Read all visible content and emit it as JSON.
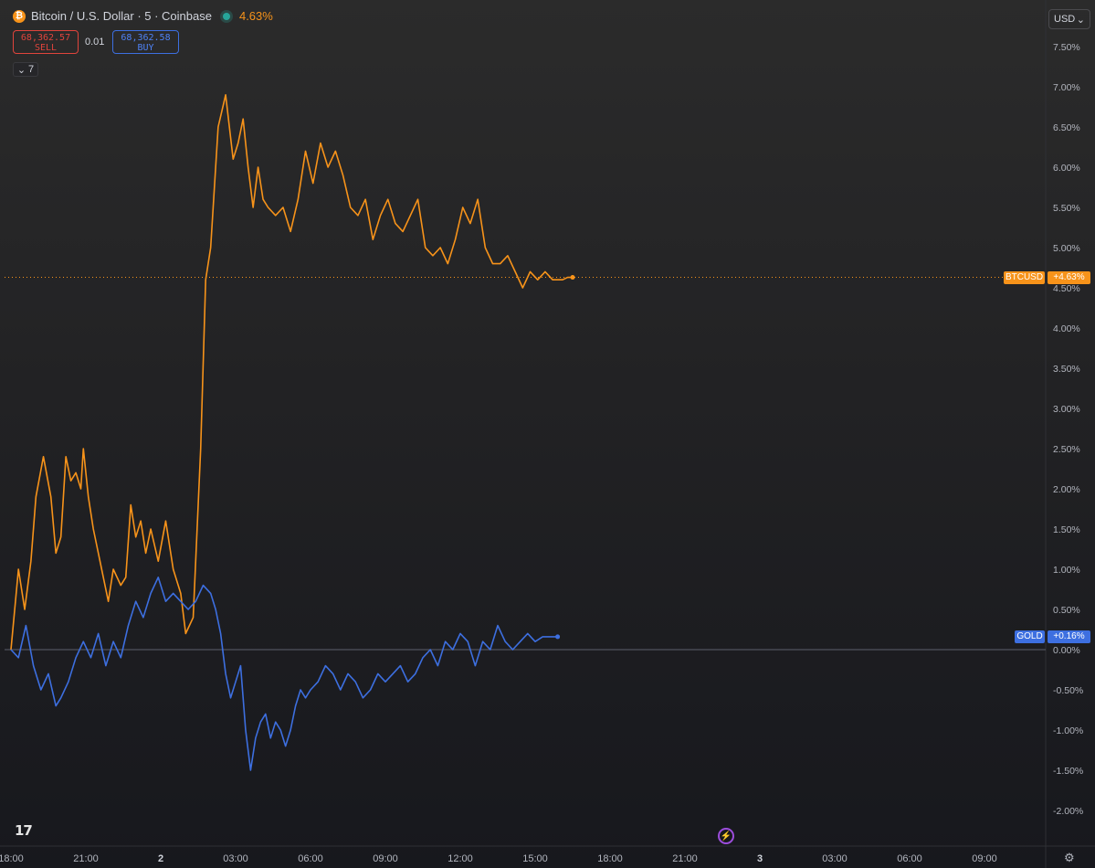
{
  "header": {
    "title": "Bitcoin / U.S. Dollar · 5 · Coinbase",
    "change_pct": "4.63%",
    "sell_price": "68,362.57",
    "sell_label": "SELL",
    "spread": "0.01",
    "buy_price": "68,362.58",
    "buy_label": "BUY",
    "indicators_count": "7",
    "currency": "USD"
  },
  "icons": [
    "bitcoin-icon",
    "live-status-icon",
    "chevron-down-icon",
    "tradingview-logo",
    "replay-icon",
    "gear-icon"
  ],
  "colors": {
    "btc": "#f7931a",
    "gold": "#3d6fe0",
    "sell": "#e0443c",
    "buy": "#4e82f5"
  },
  "chart_data": {
    "type": "line",
    "title": "Bitcoin / U.S. Dollar · 5 · Coinbase",
    "xlabel": "",
    "ylabel": "",
    "x_ticks": [
      "18:00",
      "21:00",
      "2",
      "03:00",
      "06:00",
      "09:00",
      "12:00",
      "15:00",
      "18:00",
      "21:00",
      "3",
      "03:00",
      "06:00",
      "09:00"
    ],
    "y_ticks": [
      "7.50%",
      "7.00%",
      "6.50%",
      "6.00%",
      "5.50%",
      "5.00%",
      "4.50%",
      "4.00%",
      "3.50%",
      "3.00%",
      "2.50%",
      "2.00%",
      "1.50%",
      "1.00%",
      "0.50%",
      "0.00%",
      "-0.50%",
      "-1.00%",
      "-1.50%",
      "-2.00%"
    ],
    "ylim": [
      -2.2,
      7.9
    ],
    "xlim": [
      "18:00",
      "11:00 (day 3)"
    ],
    "grid": false,
    "series": [
      {
        "name": "BTCUSD",
        "label": "+4.63%",
        "color": "#f7931a",
        "x": [
          0,
          0.3,
          0.55,
          0.8,
          1.0,
          1.3,
          1.6,
          1.8,
          2.0,
          2.2,
          2.4,
          2.6,
          2.8,
          2.9,
          3.1,
          3.3,
          3.5,
          3.7,
          3.9,
          4.1,
          4.4,
          4.6,
          4.8,
          5.0,
          5.2,
          5.4,
          5.6,
          5.9,
          6.2,
          6.5,
          6.8,
          7.0,
          7.3,
          7.6,
          7.8,
          8.0,
          8.3,
          8.6,
          8.9,
          9.1,
          9.3,
          9.5,
          9.7,
          9.9,
          10.1,
          10.3,
          10.6,
          10.9,
          11.2,
          11.5,
          11.8,
          12.1,
          12.4,
          12.7,
          13.0,
          13.3,
          13.6,
          13.9,
          14.2,
          14.5,
          14.8,
          15.1,
          15.4,
          15.7,
          16.0,
          16.3,
          16.6,
          16.9,
          17.2,
          17.5,
          17.8,
          18.1,
          18.4,
          18.7,
          19.0,
          19.3,
          19.6,
          19.9,
          20.2,
          20.5,
          20.8,
          21.1,
          21.4,
          21.7,
          21.9,
          22.1,
          22.3,
          22.5
        ],
        "y": [
          0.0,
          1.0,
          0.5,
          1.1,
          1.9,
          2.4,
          1.9,
          1.2,
          1.4,
          2.4,
          2.1,
          2.2,
          2.0,
          2.5,
          1.9,
          1.5,
          1.2,
          0.9,
          0.6,
          1.0,
          0.8,
          0.9,
          1.8,
          1.4,
          1.6,
          1.2,
          1.5,
          1.1,
          1.6,
          1.0,
          0.7,
          0.2,
          0.4,
          2.5,
          4.6,
          5.0,
          6.5,
          6.9,
          6.1,
          6.3,
          6.6,
          6.0,
          5.5,
          6.0,
          5.6,
          5.5,
          5.4,
          5.5,
          5.2,
          5.6,
          6.2,
          5.8,
          6.3,
          6.0,
          6.2,
          5.9,
          5.5,
          5.4,
          5.6,
          5.1,
          5.4,
          5.6,
          5.3,
          5.2,
          5.4,
          5.6,
          5.0,
          4.9,
          5.0,
          4.8,
          5.1,
          5.5,
          5.3,
          5.6,
          5.0,
          4.8,
          4.8,
          4.9,
          4.7,
          4.5,
          4.7,
          4.6,
          4.7,
          4.6,
          4.6,
          4.6,
          4.63,
          4.63
        ],
        "last_value": 4.63
      },
      {
        "name": "GOLD",
        "label": "+0.16%",
        "color": "#3d6fe0",
        "x": [
          0,
          0.3,
          0.6,
          0.9,
          1.2,
          1.5,
          1.8,
          2.0,
          2.3,
          2.6,
          2.9,
          3.2,
          3.5,
          3.8,
          4.1,
          4.4,
          4.7,
          5.0,
          5.3,
          5.6,
          5.9,
          6.2,
          6.5,
          6.8,
          7.1,
          7.4,
          7.7,
          8.0,
          8.2,
          8.4,
          8.6,
          8.8,
          9.0,
          9.2,
          9.4,
          9.6,
          9.8,
          10.0,
          10.2,
          10.4,
          10.6,
          10.8,
          11.0,
          11.2,
          11.4,
          11.6,
          11.8,
          12.0,
          12.3,
          12.6,
          12.9,
          13.2,
          13.5,
          13.8,
          14.1,
          14.4,
          14.7,
          15.0,
          15.3,
          15.6,
          15.9,
          16.2,
          16.5,
          16.8,
          17.1,
          17.4,
          17.7,
          18.0,
          18.3,
          18.6,
          18.9,
          19.2,
          19.5,
          19.8,
          20.1,
          20.4,
          20.7,
          21.0,
          21.3,
          21.6,
          21.9
        ],
        "y": [
          0.0,
          -0.1,
          0.3,
          -0.2,
          -0.5,
          -0.3,
          -0.7,
          -0.6,
          -0.4,
          -0.1,
          0.1,
          -0.1,
          0.2,
          -0.2,
          0.1,
          -0.1,
          0.3,
          0.6,
          0.4,
          0.7,
          0.9,
          0.6,
          0.7,
          0.6,
          0.5,
          0.6,
          0.8,
          0.7,
          0.5,
          0.2,
          -0.3,
          -0.6,
          -0.4,
          -0.2,
          -1.0,
          -1.5,
          -1.1,
          -0.9,
          -0.8,
          -1.1,
          -0.9,
          -1.0,
          -1.2,
          -1.0,
          -0.7,
          -0.5,
          -0.6,
          -0.5,
          -0.4,
          -0.2,
          -0.3,
          -0.5,
          -0.3,
          -0.4,
          -0.6,
          -0.5,
          -0.3,
          -0.4,
          -0.3,
          -0.2,
          -0.4,
          -0.3,
          -0.1,
          0.0,
          -0.2,
          0.1,
          0.0,
          0.2,
          0.1,
          -0.2,
          0.1,
          0.0,
          0.3,
          0.1,
          0.0,
          0.1,
          0.2,
          0.1,
          0.16,
          0.16,
          0.16
        ],
        "last_value": 0.16
      }
    ]
  }
}
